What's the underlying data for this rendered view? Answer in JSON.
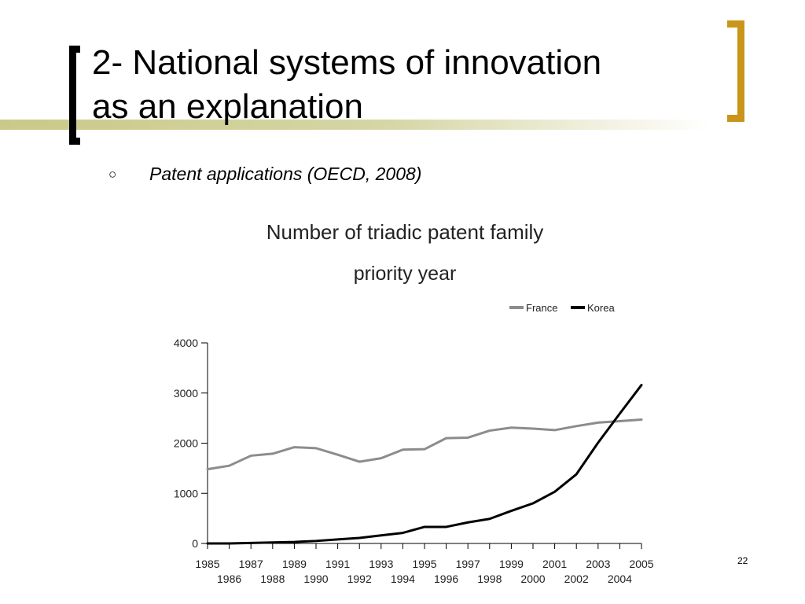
{
  "slide": {
    "title_line1": "2- National systems of innovation",
    "title_line2": "as an explanation",
    "bullet_icon": "hollow-circle-bullet-icon",
    "bullet_symbol": "○",
    "bullet_text": "Patent applications (OECD, 2008)",
    "slide_number": "22",
    "colors": {
      "left_bracket": "#000000",
      "right_bracket": "#c9951a",
      "title_rule": "#c9c98a"
    }
  },
  "chart_data": {
    "type": "line",
    "title": "Number of triadic patent family",
    "subtitle": "priority year",
    "xlabel": "",
    "ylabel": "",
    "x": [
      1985,
      1986,
      1987,
      1988,
      1989,
      1990,
      1991,
      1992,
      1993,
      1994,
      1995,
      1996,
      1997,
      1998,
      1999,
      2000,
      2001,
      2002,
      2003,
      2004,
      2005
    ],
    "xlim": [
      1985,
      2005
    ],
    "ylim": [
      0,
      4000
    ],
    "yticks": [
      0,
      1000,
      2000,
      3000,
      4000
    ],
    "grid": false,
    "legend_position": "top-right",
    "series": [
      {
        "name": "France",
        "color": "#8c8c8c",
        "values": [
          1480,
          1550,
          1750,
          1790,
          1920,
          1900,
          1770,
          1630,
          1700,
          1870,
          1880,
          2100,
          2110,
          2250,
          2310,
          2290,
          2260,
          2340,
          2410,
          2440,
          2470
        ]
      },
      {
        "name": "Korea",
        "color": "#000000",
        "values": [
          0,
          0,
          10,
          20,
          30,
          50,
          80,
          110,
          160,
          210,
          330,
          330,
          420,
          490,
          650,
          800,
          1030,
          1380,
          2010,
          2590,
          3160
        ]
      }
    ]
  }
}
